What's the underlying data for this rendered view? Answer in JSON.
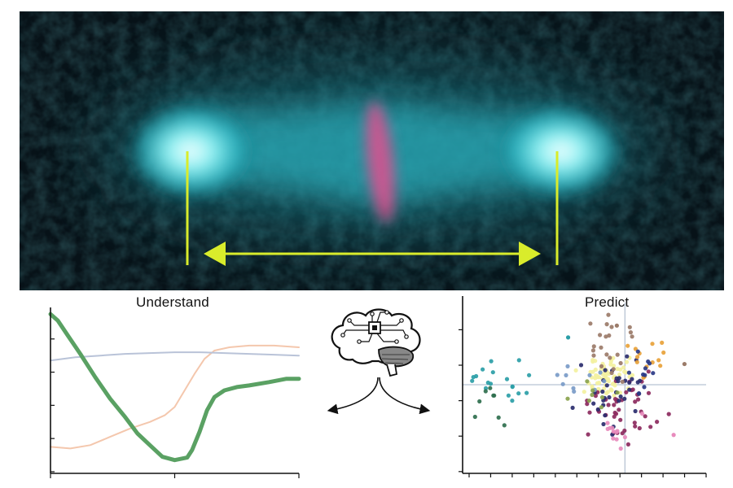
{
  "micrograph": {
    "spindle_color": "#33d6e0",
    "chromosome_color": "#e0508f",
    "marker_color": "#d9ec2b",
    "background_color": "#071218"
  },
  "center": {
    "icons": [
      "brain-circuit-icon",
      "branching-arrows-icon"
    ]
  },
  "understand_panel": {
    "title": "Understand",
    "chart_data": {
      "type": "line",
      "title": "Understand",
      "x_ticks": 3,
      "y_ticks": 5,
      "xlim": [
        0,
        100
      ],
      "ylim": [
        0,
        100
      ],
      "series": [
        {
          "color": "#5aa163",
          "values": [
            [
              0,
              96
            ],
            [
              3,
              92
            ],
            [
              7,
              83
            ],
            [
              12,
              72
            ],
            [
              18,
              58
            ],
            [
              24,
              45
            ],
            [
              30,
              34
            ],
            [
              35,
              24
            ],
            [
              40,
              17
            ],
            [
              45,
              10
            ],
            [
              50,
              8
            ],
            [
              55,
              9.5
            ],
            [
              57,
              14
            ],
            [
              60,
              25
            ],
            [
              63,
              38
            ],
            [
              66,
              46
            ],
            [
              70,
              50
            ],
            [
              75,
              52
            ],
            [
              80,
              53
            ],
            [
              88,
              55
            ],
            [
              95,
              57
            ],
            [
              100,
              57
            ]
          ]
        },
        {
          "color": "#f4c7ad",
          "values": [
            [
              0,
              16
            ],
            [
              8,
              15
            ],
            [
              16,
              17
            ],
            [
              24,
              22
            ],
            [
              32,
              27
            ],
            [
              40,
              31
            ],
            [
              46,
              35
            ],
            [
              50,
              40
            ],
            [
              54,
              50
            ],
            [
              58,
              60
            ],
            [
              62,
              69
            ],
            [
              66,
              74
            ],
            [
              72,
              76
            ],
            [
              80,
              77
            ],
            [
              90,
              77
            ],
            [
              100,
              76
            ]
          ]
        },
        {
          "color": "#b9c3d8",
          "values": [
            [
              0,
              68
            ],
            [
              10,
              70
            ],
            [
              20,
              71
            ],
            [
              30,
              72
            ],
            [
              40,
              72.5
            ],
            [
              50,
              73
            ],
            [
              60,
              73
            ],
            [
              70,
              72.5
            ],
            [
              80,
              72
            ],
            [
              90,
              71.5
            ],
            [
              100,
              71
            ]
          ]
        }
      ]
    }
  },
  "predict_panel": {
    "title": "Predict",
    "chart_data": {
      "type": "scatter",
      "title": "Predict",
      "x_ticks": 12,
      "y_ticks": 5,
      "xlim": [
        -6,
        3
      ],
      "ylim": [
        -3,
        3
      ],
      "crosshair": [
        0,
        0
      ],
      "clusters": [
        {
          "color": "#f3f1a0",
          "center": [
            -0.5,
            0.3
          ],
          "spread": [
            0.45,
            0.3
          ],
          "count": 70
        },
        {
          "color": "#8c2a5e",
          "center": [
            -0.1,
            -0.8
          ],
          "spread": [
            0.7,
            0.55
          ],
          "count": 45
        },
        {
          "color": "#2a2d6e",
          "center": [
            -0.3,
            -0.2
          ],
          "spread": [
            0.6,
            0.5
          ],
          "count": 35
        },
        {
          "color": "#9b7b69",
          "center": [
            -0.3,
            1.3
          ],
          "spread": [
            0.5,
            0.6
          ],
          "count": 22
        },
        {
          "color": "#e8a23a",
          "center": [
            0.9,
            0.8
          ],
          "spread": [
            0.5,
            0.4
          ],
          "count": 14
        },
        {
          "color": "#2b9ea7",
          "center": [
            -4.5,
            0.0
          ],
          "spread": [
            0.6,
            0.35
          ],
          "count": 18
        },
        {
          "color": "#2f6f4e",
          "center": [
            -4.8,
            -0.5
          ],
          "spread": [
            0.4,
            0.4
          ],
          "count": 8
        },
        {
          "color": "#e88bbd",
          "center": [
            -0.4,
            -1.3
          ],
          "spread": [
            0.5,
            0.3
          ],
          "count": 12
        },
        {
          "color": "#7a9bc8",
          "center": [
            -1.8,
            0.1
          ],
          "spread": [
            0.7,
            0.3
          ],
          "count": 10
        },
        {
          "color": "#8aa34d",
          "center": [
            -1.2,
            -0.3
          ],
          "spread": [
            0.5,
            0.3
          ],
          "count": 8
        },
        {
          "color": "#2a3a86",
          "center": [
            0.7,
            0.3
          ],
          "spread": [
            0.3,
            0.4
          ],
          "count": 10
        }
      ],
      "outliers": [
        {
          "color": "#2b9ea7",
          "point": [
            -2.1,
            1.6
          ]
        },
        {
          "color": "#e88bbd",
          "point": [
            1.8,
            -1.7
          ]
        },
        {
          "color": "#9b7b69",
          "point": [
            2.2,
            0.7
          ]
        },
        {
          "color": "#9b7b69",
          "point": [
            -0.3,
            2.0
          ]
        }
      ]
    }
  }
}
